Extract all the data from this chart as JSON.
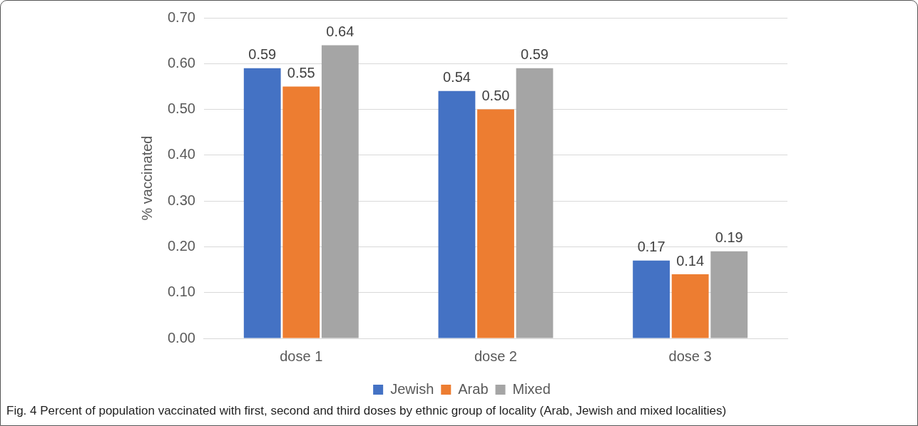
{
  "chart_data": {
    "type": "bar",
    "ylabel": "% vaccinated",
    "categories": [
      "dose 1",
      "dose 2",
      "dose 3"
    ],
    "series": [
      {
        "name": "Jewish",
        "color": "#4472c4",
        "values": [
          0.59,
          0.54,
          0.17
        ],
        "value_labels": [
          "0.59",
          "0.54",
          "0.17"
        ]
      },
      {
        "name": "Arab",
        "color": "#ed7d31",
        "values": [
          0.55,
          0.5,
          0.14
        ],
        "value_labels": [
          "0.55",
          "0.50",
          "0.14"
        ]
      },
      {
        "name": "Mixed",
        "color": "#a5a5a5",
        "values": [
          0.64,
          0.59,
          0.19
        ],
        "value_labels": [
          "0.64",
          "0.59",
          "0.19"
        ]
      }
    ],
    "ylim": [
      0,
      0.7
    ],
    "yticks": [
      {
        "value": 0,
        "label": "0.00"
      },
      {
        "value": 0.1,
        "label": "0.10"
      },
      {
        "value": 0.2,
        "label": "0.20"
      },
      {
        "value": 0.3,
        "label": "0.30"
      },
      {
        "value": 0.4,
        "label": "0.40"
      },
      {
        "value": 0.5,
        "label": "0.50"
      },
      {
        "value": 0.6,
        "label": "0.60"
      },
      {
        "value": 0.7,
        "label": "0.70"
      }
    ],
    "grid": "y",
    "legend": "bottom",
    "annotations": [
      "Fig. 4  Percent of population vaccinated with first, second and third doses by ethnic group of locality (Arab, Jewish and mixed localities)"
    ]
  }
}
